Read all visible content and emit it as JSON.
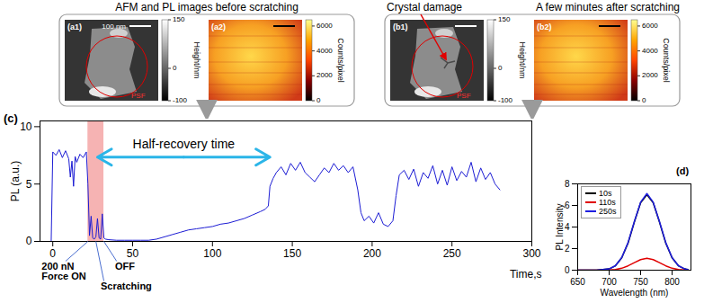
{
  "image_groups": [
    {
      "title": "AFM and PL images before scratching",
      "panels": [
        {
          "label": "(a1)",
          "type": "afm",
          "scale_bar": "100 nm",
          "circle_label": "PSF",
          "colorbar": {
            "range": [
              -100,
              150
            ],
            "ticks": [
              150,
              0,
              -100
            ],
            "label": "Height/nm"
          }
        },
        {
          "label": "(a2)",
          "type": "pl",
          "colorbar": {
            "range": [
              0,
              6500
            ],
            "ticks": [
              6000,
              4000,
              2000,
              0
            ],
            "label": "Counts/pixel"
          }
        }
      ]
    },
    {
      "title": "A few minutes after scratching",
      "annotation": "Crystal damage",
      "panels": [
        {
          "label": "(b1)",
          "type": "afm",
          "circle_label": "PSF",
          "colorbar": {
            "range": [
              -100,
              150
            ],
            "ticks": [
              150,
              0,
              -100
            ],
            "label": "Height/nm"
          }
        },
        {
          "label": "(b2)",
          "type": "pl",
          "colorbar": {
            "range": [
              0,
              6500
            ],
            "ticks": [
              6000,
              4000,
              2000,
              0
            ],
            "label": "Counts/pixel"
          }
        }
      ]
    }
  ],
  "chart_data": [
    {
      "type": "line",
      "label": "(c)",
      "x": [
        -1,
        0,
        2,
        4,
        6,
        8,
        10,
        11,
        12,
        13,
        14,
        15,
        17,
        19,
        21,
        22,
        23,
        24,
        25,
        26,
        27,
        28,
        29,
        30,
        31,
        32,
        33,
        35,
        40,
        45,
        50,
        55,
        60,
        65,
        70,
        75,
        80,
        85,
        90,
        95,
        100,
        105,
        110,
        115,
        120,
        125,
        130,
        133,
        135,
        136,
        138,
        140,
        143,
        146,
        149,
        152,
        155,
        158,
        161,
        164,
        167,
        170,
        173,
        176,
        179,
        182,
        185,
        188,
        191,
        193,
        195,
        198,
        201,
        204,
        207,
        210,
        213,
        215,
        217,
        220,
        223,
        226,
        229,
        232,
        235,
        238,
        241,
        244,
        247,
        250,
        253,
        256,
        259,
        262,
        265,
        268,
        271,
        274,
        277,
        280
      ],
      "series": [
        {
          "color": "#1c1cd4",
          "values": [
            0,
            7.8,
            7.5,
            8.0,
            7.3,
            7.9,
            7.2,
            5.6,
            7.0,
            4.8,
            7.4,
            6.9,
            7.6,
            7.3,
            7.8,
            5.0,
            0.5,
            2.2,
            0.3,
            0.2,
            0.4,
            2.0,
            0.3,
            0.2,
            2.4,
            0.3,
            0.2,
            0.15,
            0.1,
            0.1,
            0.1,
            0.1,
            0.1,
            0.2,
            0.4,
            0.6,
            0.8,
            1.0,
            1.1,
            1.2,
            1.3,
            1.5,
            1.6,
            1.8,
            2.0,
            2.3,
            2.6,
            2.8,
            3.1,
            4.8,
            5.5,
            6.0,
            6.5,
            5.8,
            6.8,
            6.2,
            6.9,
            6.0,
            5.6,
            5.2,
            5.8,
            6.4,
            6.0,
            6.8,
            6.2,
            6.6,
            6.0,
            6.5,
            4.5,
            2.5,
            1.8,
            2.2,
            1.6,
            2.5,
            1.5,
            1.3,
            1.8,
            4.0,
            5.8,
            6.2,
            5.4,
            6.3,
            4.8,
            6.0,
            5.5,
            6.6,
            5.0,
            6.2,
            4.9,
            6.5,
            5.3,
            6.1,
            5.6,
            6.9,
            5.2,
            6.4,
            5.4,
            6.0,
            5.0,
            4.5
          ]
        }
      ],
      "xlabel": "Time,s",
      "ylabel": "PL (a.u.)",
      "xlim": [
        -8,
        300
      ],
      "xticks": [
        0,
        50,
        100,
        150,
        200,
        250,
        300
      ],
      "ylim": [
        0,
        10.5
      ],
      "yticks": [
        0,
        5,
        10
      ],
      "scratch_interval": [
        22,
        32
      ],
      "force_label": "200 nN\nForce ON",
      "scratch_label": "Scratching",
      "off_label": "OFF",
      "half_recovery": {
        "text": "Half-recovery time",
        "x": [
          28,
          136
        ]
      }
    },
    {
      "type": "line",
      "label": "(d)",
      "x": [
        650,
        680,
        700,
        710,
        720,
        730,
        740,
        750,
        760,
        770,
        780,
        790,
        800,
        810,
        820,
        825
      ],
      "series": [
        {
          "name": "10s",
          "color": "#000000",
          "values": [
            0,
            0,
            0.12,
            0.41,
            1.15,
            2.5,
            4.45,
            6.25,
            7.0,
            6.25,
            4.45,
            2.5,
            1.15,
            0.41,
            0.12,
            0.06
          ]
        },
        {
          "name": "110s",
          "color": "#e00000",
          "values": [
            0,
            0,
            0.02,
            0.06,
            0.18,
            0.4,
            0.7,
            0.98,
            1.1,
            0.98,
            0.7,
            0.4,
            0.18,
            0.06,
            0.02,
            0.01
          ]
        },
        {
          "name": "250s",
          "color": "#1f1fe0",
          "values": [
            0,
            0,
            0.12,
            0.42,
            1.16,
            2.55,
            4.5,
            6.3,
            7.1,
            6.3,
            4.5,
            2.55,
            1.16,
            0.42,
            0.12,
            0.06
          ]
        }
      ],
      "xlabel": "Wavelength (nm)",
      "ylabel": "PL Intensity",
      "xlim": [
        650,
        830
      ],
      "xticks": [
        650,
        700,
        750,
        800
      ],
      "ylim": [
        0,
        8
      ],
      "yticks": [
        0,
        2,
        4,
        6,
        8
      ],
      "legend": "top-left"
    }
  ]
}
